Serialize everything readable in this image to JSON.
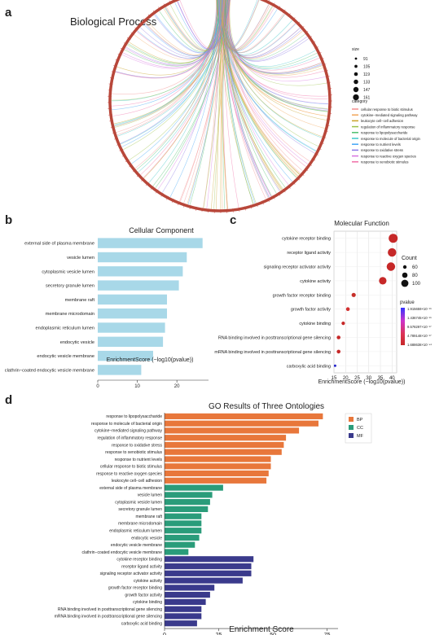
{
  "panel_labels": {
    "a": "a",
    "b": "b",
    "c": "c",
    "d": "d"
  },
  "colors": {
    "bp": "#e8773b",
    "cc": "#2a9c7a",
    "mf": "#3a3a8c",
    "cellular": "#a8d8e8",
    "circle": "#b8473a"
  },
  "chart_data": [
    {
      "panel": "a",
      "type": "chord",
      "title": "Biological Process",
      "size_legend_title": "size",
      "size_values": [
        91,
        105,
        119,
        133,
        147,
        161
      ],
      "category_legend_title": "category",
      "categories": [
        "cellular response to biotic stimulus",
        "cytokine−mediated signaling pathway",
        "leukocyte cell−cell adhesion",
        "regulation of inflammatory response",
        "response to lipopolysaccharide",
        "response to molecule of bacterial origin",
        "response to nutrient levels",
        "response to oxidative stress",
        "response to reactive oxygen species",
        "response to xenobiotic stimulus"
      ],
      "category_colors": [
        "#f28e8e",
        "#f2a65a",
        "#c9a227",
        "#9cc24a",
        "#4cbf6b",
        "#3cc7c7",
        "#42a5f5",
        "#8c7ae6",
        "#d773e0",
        "#f070a8"
      ]
    },
    {
      "panel": "b",
      "type": "bar",
      "title": "Cellular Component",
      "xlabel": "EnrichmentScore (−log10(pvalue))",
      "xlim": [
        0,
        28
      ],
      "xticks": [
        0,
        10,
        20
      ],
      "categories": [
        "external side of plasma membrane",
        "vesicle lumen",
        "cytoplasmic vesicle lumen",
        "secretory granule lumen",
        "membrane raft",
        "membrane microdomain",
        "endoplasmic reticulum lumen",
        "endocytic vesicle",
        "endocytic vesicle membrane",
        "clathrin−coated endocytic vesicle membrane"
      ],
      "values": [
        26.5,
        22.5,
        21.5,
        20.5,
        17.5,
        17.5,
        17.0,
        16.5,
        14.0,
        11.0
      ]
    },
    {
      "panel": "c",
      "type": "scatter",
      "title": "Molecular Function",
      "xlabel": "EnrichmentScore (−log10(pvalue))",
      "xlim": [
        15,
        42
      ],
      "xticks": [
        15,
        20,
        25,
        30,
        35,
        40
      ],
      "categories": [
        "cytokine receptor binding",
        "receptor ligand activity",
        "signaling receptor activator activity",
        "cytokine activity",
        "growth factor receptor binding",
        "growth factor activity",
        "cytokine binding",
        "RNA binding involved in posttranscriptional gene silencing",
        "mRNA binding involved in posttranscriptional gene silencing",
        "carboxylic acid binding"
      ],
      "x": [
        40.5,
        40.0,
        39.5,
        36.0,
        23.5,
        21.0,
        19.0,
        17.0,
        17.0,
        15.5
      ],
      "count": [
        105,
        100,
        100,
        90,
        55,
        50,
        45,
        50,
        50,
        35
      ],
      "count_legend_title": "Count",
      "count_legend_values": [
        60,
        80,
        100
      ],
      "pvalue_legend_title": "pvalue",
      "pvalue_legend_values": [
        "1.915659×10⁻¹⁶",
        "1.436745×10⁻¹⁶",
        "9.578297×10⁻¹⁷",
        "4.789148×10⁻¹⁷",
        "1.688638×10⁻⁴¹"
      ]
    },
    {
      "panel": "d",
      "type": "bar",
      "title": "GO Results of Three Ontologies",
      "xlabel": "Enrichment Score",
      "xlim": [
        0,
        80
      ],
      "xticks": [
        0,
        25,
        50,
        75
      ],
      "legend": [
        "BP",
        "CC",
        "MF"
      ],
      "series": [
        {
          "name": "BP",
          "categories": [
            "response to lipopolysaccharide",
            "response to molecule of bacterial origin",
            "cytokine−mediated signaling pathway",
            "regulation of inflammatory response",
            "response to oxidative stress",
            "response to xenobiotic stimulus",
            "response to nutrient levels",
            "cellular response to biotic stimulus",
            "response to reactive oxygen species",
            "leukocyte cell−cell adhesion"
          ],
          "values": [
            73,
            71,
            62,
            56,
            55,
            54,
            49,
            49,
            48,
            47
          ]
        },
        {
          "name": "CC",
          "categories": [
            "external side of plasma membrane",
            "vesicle lumen",
            "cytoplasmic vesicle lumen",
            "secretory granule lumen",
            "membrane raft",
            "membrane microdomain",
            "endoplasmic reticulum lumen",
            "endocytic vesicle",
            "endocytic vesicle membrane",
            "clathrin−coated endocytic vesicle membrane"
          ],
          "values": [
            27,
            22,
            21,
            20,
            17,
            17,
            17,
            16,
            14,
            11
          ]
        },
        {
          "name": "MF",
          "categories": [
            "cytokine receptor binding",
            "receptor ligand activity",
            "signaling receptor activator activity",
            "cytokine activity",
            "growth factor receptor binding",
            "growth factor activity",
            "cytokine binding",
            "RNA binding involved in posttranscriptional gene silencing",
            "mRNA binding involved in posttranscriptional gene silencing",
            "carboxylic acid binding"
          ],
          "values": [
            41,
            40,
            40,
            36,
            23,
            21,
            19,
            17,
            17,
            15
          ]
        }
      ]
    }
  ]
}
